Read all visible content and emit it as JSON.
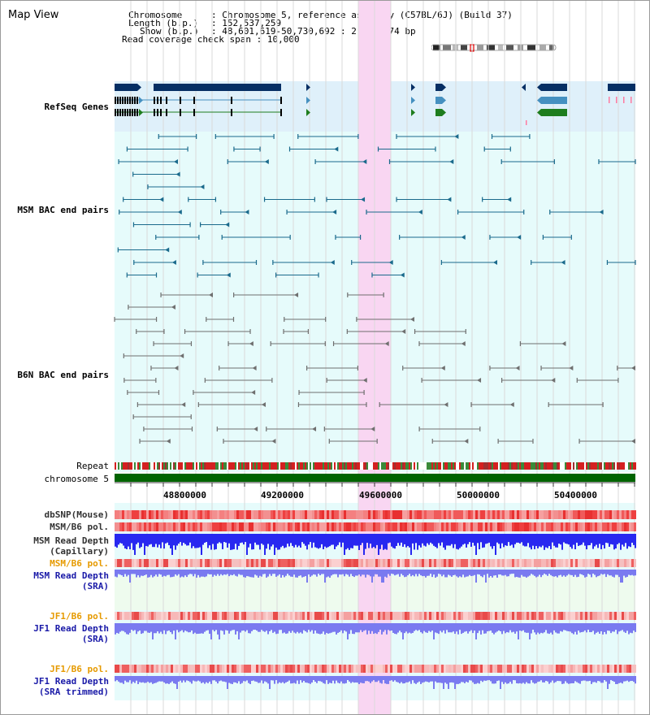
{
  "view_title": "Map View",
  "info": {
    "chromosome_key": "Chromosome",
    "chromosome_val": "Chromosome 5, reference assembly (C57BL/6J) (Build 37)",
    "length_key": "Length (b.p.)",
    "length_val": "152,537,259",
    "show_key": "Show (b.p.)",
    "show_val": "48,601,619-50,730,692 : 2,129,074 bp",
    "coverage_key": "Read coverage check span",
    "coverage_val": "10,000"
  },
  "tracks": {
    "refseq": "RefSeq Genes",
    "msm_bac": "MSM BAC end pairs",
    "b6n_bac": "B6N BAC end pairs",
    "repeat": "Repeat",
    "chromosome": "chromosome 5",
    "dbsnp": "dbSNP(Mouse)",
    "msm_b6_pol": "MSM/B6 pol.",
    "msm_depth_cap_1": "MSM Read Depth",
    "msm_depth_cap_2": "(Capillary)",
    "msm_b6_pol_2": "MSM/B6 pol.",
    "msm_depth_sra_1": "MSM Read Depth",
    "msm_depth_sra_2": "(SRA)",
    "jf1_b6_pol": "JF1/B6 pol.",
    "jf1_depth_sra_1": "JF1 Read Depth",
    "jf1_depth_sra_2": "(SRA)",
    "jf1_b6_pol_2": "JF1/B6 pol.",
    "jf1_depth_trim_1": "JF1 Read Depth",
    "jf1_depth_trim_2": "(SRA trimmed)"
  },
  "axis_ticks": [
    "48800000",
    "49200000",
    "49600000",
    "50000000",
    "50400000"
  ],
  "colors": {
    "refseq_bg": "#dff0fa",
    "track_bg": "#e6fbfb",
    "highlight": "#f9d6f2",
    "gene_dark": "#062f64",
    "gene_mid": "#4590c0",
    "gene_green": "#1e7d1e",
    "msm_label": "#0e5a80",
    "b6n_label": "#555555",
    "label_blue": "#1a1aa8",
    "label_orange": "#e69a00",
    "depth_blue": "#2828f0",
    "depth_light": "#7a7af0"
  }
}
